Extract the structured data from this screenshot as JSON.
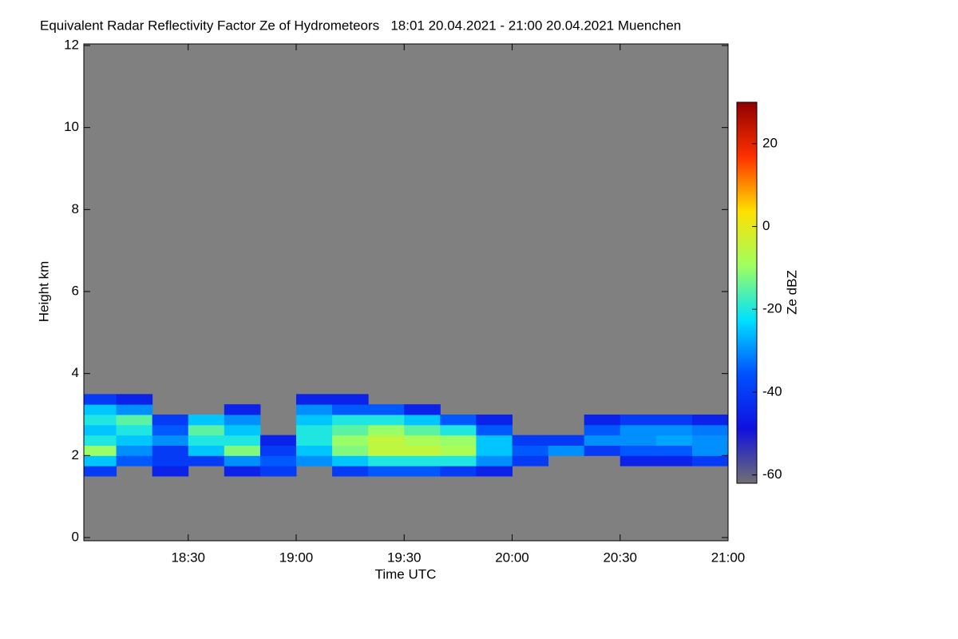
{
  "chart_data": {
    "type": "heatmap",
    "title": "Equivalent Radar Reflectivity Factor Ze of Hydrometeors   18:01 20.04.2021 - 21:00 20.04.2021 Muenchen",
    "x_label": "Time UTC",
    "y_label": "Height km",
    "colorbar_label": "Ze dBZ",
    "xlim": [
      1,
      180
    ],
    "xticks": [
      {
        "value": 30,
        "label": "18:30"
      },
      {
        "value": 60,
        "label": "19:00"
      },
      {
        "value": 90,
        "label": "19:30"
      },
      {
        "value": 120,
        "label": "20:00"
      },
      {
        "value": 150,
        "label": "20:30"
      },
      {
        "value": 180,
        "label": "21:00"
      }
    ],
    "ylim": [
      0,
      12
    ],
    "yticks": [
      0,
      2,
      4,
      6,
      8,
      10,
      12
    ],
    "clim": [
      -62,
      30
    ],
    "cticks": [
      -60,
      -40,
      -20,
      0,
      20
    ],
    "colormap": [
      "#707070",
      "#1010e0",
      "#0050ff",
      "#00e0ff",
      "#a0ff60",
      "#ffe000",
      "#ff3000",
      "#900000"
    ],
    "x_bins": [
      1,
      10,
      20,
      30,
      40,
      50,
      60,
      70,
      80,
      90,
      100,
      110,
      120,
      130,
      140,
      150,
      160,
      170,
      180
    ],
    "y_bins": [
      1.5,
      1.75,
      2.0,
      2.25,
      2.5,
      2.75,
      3.0,
      3.25,
      3.5
    ],
    "z": [
      [
        -40,
        null,
        -45,
        null,
        -45,
        -40,
        null,
        -40,
        -35,
        -35,
        -40,
        -45,
        null,
        null,
        null,
        null,
        null,
        null
      ],
      [
        -25,
        -35,
        -40,
        -40,
        -30,
        -35,
        -30,
        -25,
        -20,
        -20,
        -20,
        -30,
        -40,
        null,
        null,
        -45,
        -45,
        -40
      ],
      [
        -10,
        -30,
        -40,
        -25,
        -12,
        -40,
        -25,
        -12,
        -5,
        -5,
        -8,
        -25,
        -35,
        -30,
        -40,
        -35,
        -35,
        -30
      ],
      [
        -20,
        -25,
        -30,
        -20,
        -20,
        -45,
        -20,
        -10,
        -5,
        -8,
        -10,
        -25,
        -40,
        -40,
        -30,
        -30,
        -28,
        -30
      ],
      [
        -25,
        -20,
        -35,
        -15,
        -25,
        null,
        -20,
        -15,
        -10,
        -15,
        -20,
        -35,
        null,
        null,
        -35,
        -30,
        -30,
        -32
      ],
      [
        -20,
        -15,
        -40,
        -25,
        -30,
        null,
        -25,
        -20,
        -20,
        -25,
        -35,
        -45,
        null,
        null,
        -45,
        -40,
        -40,
        -45
      ],
      [
        -25,
        -30,
        null,
        null,
        -45,
        null,
        -30,
        -35,
        -35,
        -45,
        null,
        null,
        null,
        null,
        null,
        null,
        null,
        null
      ],
      [
        -40,
        -45,
        null,
        null,
        null,
        null,
        -45,
        -45,
        null,
        null,
        null,
        null,
        null,
        null,
        null,
        null,
        null,
        null
      ]
    ]
  }
}
